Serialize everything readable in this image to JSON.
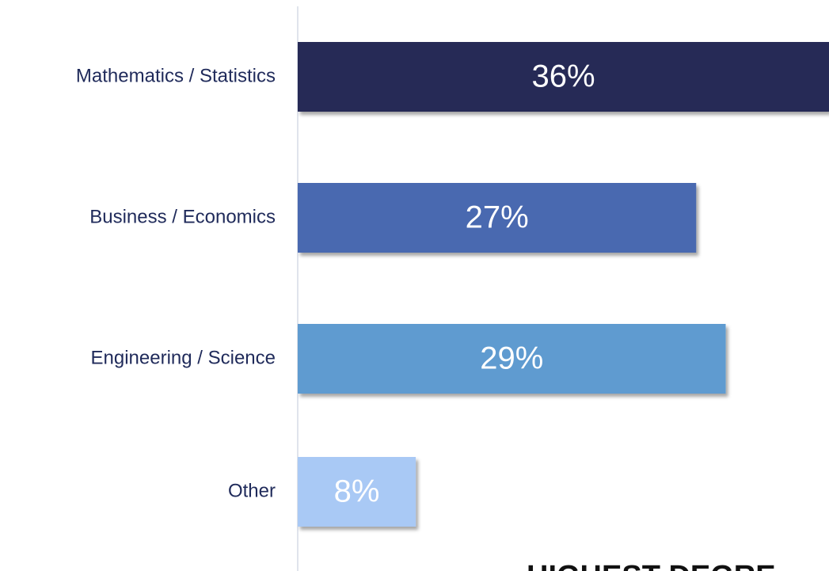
{
  "chart_data": {
    "type": "bar",
    "orientation": "horizontal",
    "title": "HIGHEST DEGRE",
    "categories": [
      "Mathematics / Statistics",
      "Business / Economics",
      "Engineering / Science",
      "Other"
    ],
    "values": [
      36,
      27,
      29,
      8
    ],
    "value_labels": [
      "36%",
      "27%",
      "29%",
      "8%"
    ],
    "colors": [
      "#262a57",
      "#4a69b0",
      "#5f9bd0",
      "#a9c9f5"
    ]
  }
}
